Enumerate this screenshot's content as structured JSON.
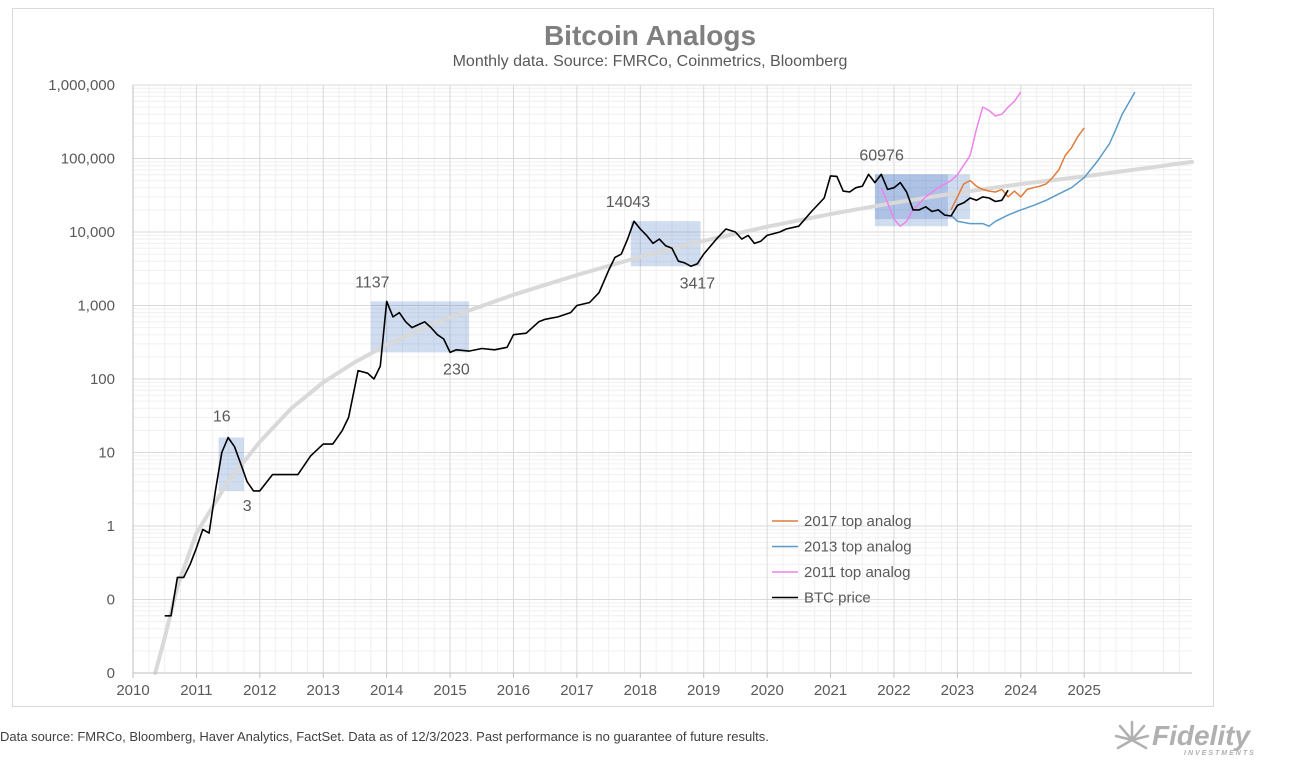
{
  "chart_data": {
    "type": "line",
    "title": "Bitcoin Analogs",
    "subtitle": "Monthly data.  Source: FMRCo, Coinmetrics, Bloomberg",
    "xlabel": "",
    "ylabel": "",
    "y_scale": "log",
    "xlim": [
      2010,
      2026.7
    ],
    "ylim": [
      0.01,
      1000000
    ],
    "x_ticks": [
      "2010",
      "2011",
      "2012",
      "2013",
      "2014",
      "2015",
      "2016",
      "2017",
      "2018",
      "2019",
      "2020",
      "2021",
      "2022",
      "2023",
      "2024",
      "2025"
    ],
    "y_tick_values": [
      0.01,
      0.1,
      1,
      10,
      100,
      1000,
      10000,
      100000,
      1000000
    ],
    "y_tick_labels": [
      "0",
      "0",
      "1",
      "10",
      "100",
      "1,000",
      "10,000",
      "100,000",
      "1,000,000"
    ],
    "grid": true,
    "legend_position": "bottom-right",
    "annotations": [
      {
        "text": "16",
        "x": 2011.4,
        "y": 16
      },
      {
        "text": "3",
        "x": 2011.8,
        "y": 3
      },
      {
        "text": "1137",
        "x": 2013.9,
        "y": 1137
      },
      {
        "text": "230",
        "x": 2015.1,
        "y": 230
      },
      {
        "text": "14043",
        "x": 2017.9,
        "y": 14043
      },
      {
        "text": "3417",
        "x": 2018.9,
        "y": 3417
      },
      {
        "text": "60976",
        "x": 2021.9,
        "y": 60976
      }
    ],
    "highlight_boxes": [
      {
        "x0": 2011.35,
        "x1": 2011.75,
        "y0": 3,
        "y1": 16
      },
      {
        "x0": 2013.75,
        "x1": 2015.3,
        "y0": 230,
        "y1": 1137
      },
      {
        "x0": 2017.85,
        "x1": 2018.95,
        "y0": 3417,
        "y1": 14043
      },
      {
        "x0": 2021.7,
        "x1": 2022.85,
        "y0": 12000,
        "y1": 60976
      },
      {
        "x0": 2021.7,
        "x1": 2023.2,
        "y0": 15000,
        "y1": 60976
      }
    ],
    "trend_curve": {
      "name": "",
      "color": "#d9d9d9",
      "x": [
        2010.35,
        2010.5,
        2010.7,
        2011.0,
        2011.5,
        2012.0,
        2012.5,
        2013.0,
        2013.5,
        2014.0,
        2014.5,
        2015.0,
        2016.0,
        2017.0,
        2018.0,
        2019.0,
        2020.0,
        2021.0,
        2022.0,
        2023.0,
        2024.0,
        2025.0,
        2026.7
      ],
      "y": [
        0.01,
        0.03,
        0.15,
        0.8,
        4,
        14,
        40,
        90,
        170,
        290,
        460,
        690,
        1400,
        2600,
        4600,
        7600,
        11800,
        17500,
        25000,
        34000,
        45000,
        57000,
        90000
      ]
    },
    "series": [
      {
        "name": "2017 top analog",
        "color": "#e07b39",
        "x": [
          2022.9,
          2023.0,
          2023.1,
          2023.2,
          2023.3,
          2023.4,
          2023.5,
          2023.6,
          2023.7,
          2023.8,
          2023.9,
          2024.0,
          2024.1,
          2024.2,
          2024.3,
          2024.4,
          2024.5,
          2024.6,
          2024.7,
          2024.8,
          2024.9,
          2025.0
        ],
        "y": [
          20000,
          30000,
          45000,
          50000,
          42000,
          38000,
          36000,
          35000,
          38000,
          30000,
          36000,
          30000,
          38000,
          40000,
          42000,
          45000,
          55000,
          70000,
          110000,
          140000,
          200000,
          260000
        ]
      },
      {
        "name": "2013 top analog",
        "color": "#5b9bc9",
        "x": [
          2022.9,
          2023.0,
          2023.2,
          2023.4,
          2023.5,
          2023.6,
          2023.8,
          2024.0,
          2024.2,
          2024.4,
          2024.6,
          2024.8,
          2025.0,
          2025.2,
          2025.4,
          2025.5,
          2025.6,
          2025.8
        ],
        "y": [
          17000,
          14000,
          13000,
          13000,
          12000,
          14000,
          17000,
          20000,
          23000,
          27000,
          33000,
          40000,
          55000,
          90000,
          160000,
          250000,
          400000,
          800000
        ]
      },
      {
        "name": "2011 top analog",
        "color": "#ee82ee",
        "x": [
          2021.8,
          2021.9,
          2022.0,
          2022.1,
          2022.2,
          2022.3,
          2022.5,
          2022.7,
          2022.9,
          2023.0,
          2023.2,
          2023.3,
          2023.4,
          2023.5,
          2023.6,
          2023.7,
          2023.8,
          2023.9,
          2024.0
        ],
        "y": [
          40000,
          25000,
          15000,
          12000,
          14000,
          20000,
          30000,
          40000,
          50000,
          60000,
          110000,
          250000,
          500000,
          450000,
          380000,
          400000,
          500000,
          600000,
          800000
        ]
      },
      {
        "name": "BTC price",
        "color": "#000000",
        "x": [
          2010.5,
          2010.6,
          2010.7,
          2010.8,
          2010.9,
          2011.0,
          2011.1,
          2011.2,
          2011.3,
          2011.4,
          2011.5,
          2011.6,
          2011.7,
          2011.8,
          2011.9,
          2012.0,
          2012.2,
          2012.4,
          2012.6,
          2012.8,
          2013.0,
          2013.15,
          2013.3,
          2013.4,
          2013.55,
          2013.7,
          2013.8,
          2013.9,
          2014.0,
          2014.1,
          2014.2,
          2014.3,
          2014.4,
          2014.5,
          2014.6,
          2014.7,
          2014.8,
          2014.9,
          2015.0,
          2015.1,
          2015.3,
          2015.5,
          2015.7,
          2015.9,
          2016.0,
          2016.2,
          2016.4,
          2016.5,
          2016.7,
          2016.9,
          2017.0,
          2017.2,
          2017.35,
          2017.5,
          2017.6,
          2017.7,
          2017.8,
          2017.9,
          2018.0,
          2018.1,
          2018.2,
          2018.3,
          2018.4,
          2018.5,
          2018.6,
          2018.7,
          2018.8,
          2018.9,
          2019.0,
          2019.2,
          2019.35,
          2019.5,
          2019.6,
          2019.7,
          2019.8,
          2019.9,
          2020.0,
          2020.2,
          2020.3,
          2020.5,
          2020.7,
          2020.9,
          2021.0,
          2021.1,
          2021.2,
          2021.3,
          2021.4,
          2021.5,
          2021.6,
          2021.7,
          2021.8,
          2021.9,
          2022.0,
          2022.1,
          2022.2,
          2022.3,
          2022.4,
          2022.5,
          2022.6,
          2022.7,
          2022.8,
          2022.9,
          2023.0,
          2023.1,
          2023.2,
          2023.3,
          2023.4,
          2023.5,
          2023.6,
          2023.7,
          2023.8
        ],
        "y": [
          0.06,
          0.06,
          0.2,
          0.2,
          0.3,
          0.5,
          0.9,
          0.8,
          3,
          10,
          16,
          12,
          7,
          4,
          3,
          3,
          5,
          5,
          5,
          9,
          13,
          13,
          20,
          30,
          130,
          120,
          100,
          150,
          1137,
          700,
          800,
          600,
          500,
          550,
          600,
          500,
          400,
          350,
          230,
          250,
          240,
          260,
          250,
          270,
          400,
          420,
          600,
          650,
          700,
          800,
          1000,
          1100,
          1500,
          3000,
          4500,
          5000,
          8000,
          14043,
          11000,
          9000,
          7000,
          8000,
          6500,
          6000,
          4000,
          3800,
          3417,
          3700,
          5000,
          8000,
          11000,
          10000,
          8000,
          9000,
          7000,
          7500,
          9000,
          10000,
          11000,
          12000,
          19000,
          29000,
          58000,
          57000,
          36000,
          35000,
          40000,
          42000,
          61000,
          47000,
          60976,
          38000,
          40000,
          47000,
          35000,
          20000,
          20000,
          22000,
          19000,
          20000,
          17000,
          16500,
          23000,
          25000,
          29000,
          27000,
          30000,
          29000,
          26000,
          27000,
          37000
        ]
      }
    ]
  },
  "footnote": "Data source: FMRCo, Bloomberg, Haver Analytics, FactSet. Data as of 12/3/2023. Past performance is no guarantee of future results.",
  "logo": {
    "name": "fidelity-logo",
    "text": "Fidelity",
    "subtext": "INVESTMENTS"
  }
}
